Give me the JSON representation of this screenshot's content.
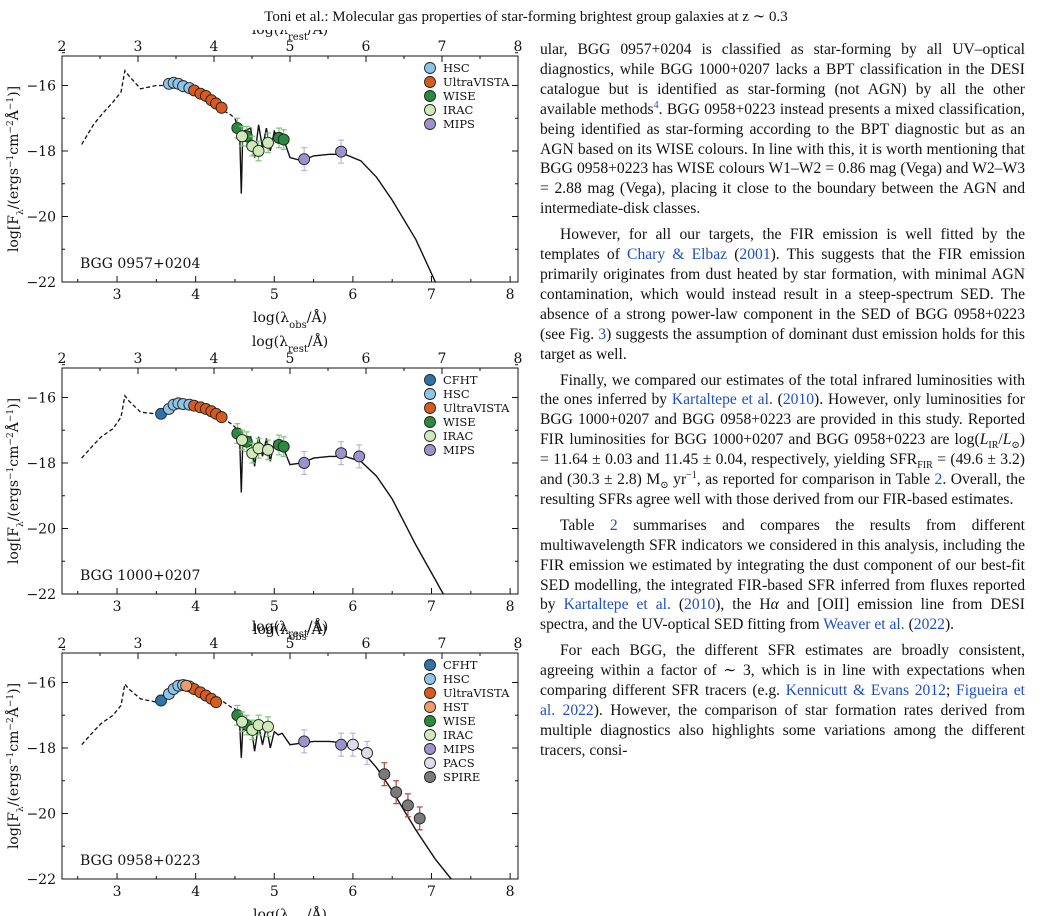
{
  "header": {
    "running_title": "Toni et al.: Molecular gas properties of star-forming brightest group galaxies at z ∼ 0.3"
  },
  "chart_data": [
    {
      "type": "scatter",
      "panel_label": "BGG 0957+0204",
      "xlabel": "log(λobs/Å)",
      "x2label": "log(λrest/Å)",
      "ylabel": "log[Fλ/(ergs−1cm−2Å−1)]",
      "xlim": [
        2.3,
        8.1
      ],
      "x2lim": [
        2.0,
        8.0
      ],
      "ylim": [
        -22,
        -15.1
      ],
      "xticks": [
        3,
        4,
        5,
        6,
        7,
        8
      ],
      "x2ticks": [
        2,
        3,
        4,
        5,
        6,
        7,
        8
      ],
      "yticks": [
        -22,
        -20,
        -18,
        -16
      ],
      "legend_position": "top-right",
      "series": [
        {
          "name": "HSC",
          "color": "#8ec4e8",
          "x": [
            3.66,
            3.72,
            3.78,
            3.84,
            3.92
          ],
          "y": [
            -15.95,
            -15.92,
            -15.95,
            -16.02,
            -16.08
          ],
          "yerr": [
            0,
            0,
            0,
            0,
            0
          ]
        },
        {
          "name": "UltraVISTA",
          "color": "#d85a1e",
          "x": [
            3.98,
            4.06,
            4.13,
            4.2,
            4.26,
            4.33
          ],
          "y": [
            -16.15,
            -16.25,
            -16.32,
            -16.45,
            -16.55,
            -16.68
          ],
          "yerr": [
            0,
            0,
            0,
            0,
            0,
            0
          ]
        },
        {
          "name": "WISE",
          "color": "#2a8a3e",
          "x": [
            4.53,
            4.65,
            5.06,
            5.12
          ],
          "y": [
            -17.3,
            -17.55,
            -17.6,
            -17.65
          ],
          "yerr": [
            0.3,
            0.3,
            0.3,
            0.3
          ]
        },
        {
          "name": "IRAC",
          "color": "#cfeab8",
          "x": [
            4.59,
            4.72,
            4.8,
            4.92
          ],
          "y": [
            -17.55,
            -17.85,
            -18.0,
            -17.75
          ],
          "yerr": [
            0.3,
            0.3,
            0.3,
            0.3
          ]
        },
        {
          "name": "MIPS",
          "color": "#9a93cc",
          "x": [
            5.38,
            5.85
          ],
          "y": [
            -18.25,
            -18.02
          ],
          "yerr": [
            0.35,
            0.35
          ]
        }
      ],
      "model_solid": {
        "x": [
          4.5,
          4.56,
          4.58,
          4.6,
          4.7,
          4.75,
          4.8,
          4.85,
          4.9,
          4.95,
          5.0,
          5.05,
          5.1,
          5.2,
          5.35,
          5.5,
          5.7,
          5.9,
          6.1,
          6.3,
          6.5,
          6.8,
          7.05
        ],
        "y": [
          -17.0,
          -17.5,
          -19.3,
          -17.4,
          -17.3,
          -18.2,
          -17.2,
          -17.9,
          -17.3,
          -18.0,
          -17.4,
          -17.6,
          -17.5,
          -18.2,
          -18.3,
          -18.15,
          -18.1,
          -18.1,
          -18.3,
          -18.8,
          -19.5,
          -20.7,
          -22.0
        ]
      },
      "model_dashed": {
        "x": [
          2.55,
          2.7,
          2.8,
          2.95,
          3.05,
          3.1,
          3.15,
          3.3,
          3.5,
          3.7,
          3.9,
          4.1,
          4.3,
          4.45,
          4.5
        ],
        "y": [
          -17.8,
          -17.2,
          -16.9,
          -16.5,
          -16.2,
          -15.55,
          -15.7,
          -16.1,
          -16.0,
          -16.0,
          -16.15,
          -16.35,
          -16.7,
          -16.9,
          -17.0
        ]
      }
    },
    {
      "type": "scatter",
      "panel_label": "BGG 1000+0207",
      "xlabel": "log(λobs/Å)",
      "x2label": "log(λrest/Å)",
      "ylabel": "log[Fλ/(ergs−1cm−2Å−1)]",
      "xlim": [
        2.3,
        8.1
      ],
      "x2lim": [
        2.0,
        8.0
      ],
      "ylim": [
        -22,
        -15.1
      ],
      "xticks": [
        3,
        4,
        5,
        6,
        7,
        8
      ],
      "x2ticks": [
        2,
        3,
        4,
        5,
        6,
        7,
        8
      ],
      "yticks": [
        -22,
        -20,
        -18,
        -16
      ],
      "legend_position": "top-right",
      "series": [
        {
          "name": "CFHT",
          "color": "#2f73a8",
          "x": [
            3.56
          ],
          "y": [
            -16.5
          ],
          "yerr": [
            0
          ]
        },
        {
          "name": "HSC",
          "color": "#8ec4e8",
          "x": [
            3.66,
            3.72,
            3.78,
            3.84,
            3.92
          ],
          "y": [
            -16.35,
            -16.22,
            -16.18,
            -16.2,
            -16.22
          ],
          "yerr": [
            0,
            0,
            0,
            0,
            0
          ]
        },
        {
          "name": "UltraVISTA",
          "color": "#d85a1e",
          "x": [
            3.98,
            4.06,
            4.13,
            4.2,
            4.26,
            4.33
          ],
          "y": [
            -16.25,
            -16.3,
            -16.35,
            -16.42,
            -16.5,
            -16.6
          ],
          "yerr": [
            0,
            0,
            0,
            0,
            0,
            0
          ]
        },
        {
          "name": "WISE",
          "color": "#2a8a3e",
          "x": [
            4.53,
            4.65,
            5.06,
            5.12
          ],
          "y": [
            -17.1,
            -17.35,
            -17.45,
            -17.5
          ],
          "yerr": [
            0.3,
            0.3,
            0.3,
            0.3
          ]
        },
        {
          "name": "IRAC",
          "color": "#cfeab8",
          "x": [
            4.59,
            4.72,
            4.8,
            4.92
          ],
          "y": [
            -17.3,
            -17.7,
            -17.55,
            -17.6
          ],
          "yerr": [
            0.3,
            0.3,
            0.3,
            0.3
          ]
        },
        {
          "name": "MIPS",
          "color": "#9a93cc",
          "x": [
            5.38,
            5.85,
            6.08
          ],
          "y": [
            -18.0,
            -17.7,
            -17.8
          ],
          "yerr": [
            0.35,
            0.35,
            0.35
          ]
        }
      ],
      "model_solid": {
        "x": [
          4.5,
          4.56,
          4.58,
          4.6,
          4.7,
          4.75,
          4.8,
          4.85,
          4.9,
          4.95,
          5.0,
          5.05,
          5.1,
          5.2,
          5.35,
          5.5,
          5.7,
          5.9,
          6.1,
          6.3,
          6.5,
          6.8,
          7.15
        ],
        "y": [
          -16.9,
          -17.3,
          -18.9,
          -17.3,
          -17.2,
          -18.1,
          -17.2,
          -17.8,
          -17.25,
          -17.95,
          -17.35,
          -17.5,
          -17.45,
          -18.05,
          -18.0,
          -17.85,
          -17.8,
          -17.8,
          -17.95,
          -18.4,
          -19.1,
          -20.5,
          -22.0
        ]
      },
      "model_dashed": {
        "x": [
          2.55,
          2.7,
          2.8,
          2.95,
          3.05,
          3.1,
          3.15,
          3.3,
          3.5,
          3.7,
          3.9,
          4.1,
          4.3,
          4.45,
          4.5
        ],
        "y": [
          -17.85,
          -17.45,
          -17.2,
          -16.95,
          -16.6,
          -15.95,
          -16.1,
          -16.45,
          -16.5,
          -16.3,
          -16.22,
          -16.3,
          -16.55,
          -16.8,
          -16.9
        ]
      }
    },
    {
      "type": "scatter",
      "panel_label": "BGG 0958+0223",
      "xlabel": "log(λobs/Å)",
      "x2label": "log(λrest/Å)",
      "ylabel": "log[Fλ/(ergs−1cm−2Å−1)]",
      "xlim": [
        2.3,
        8.1
      ],
      "x2lim": [
        2.0,
        8.0
      ],
      "ylim": [
        -22,
        -15.1
      ],
      "xticks": [
        3,
        4,
        5,
        6,
        7,
        8
      ],
      "x2ticks": [
        2,
        3,
        4,
        5,
        6,
        7,
        8
      ],
      "yticks": [
        -22,
        -20,
        -18,
        -16
      ],
      "legend_position": "top-right",
      "series": [
        {
          "name": "CFHT",
          "color": "#2f73a8",
          "x": [
            3.56
          ],
          "y": [
            -16.55
          ],
          "yerr": [
            0
          ]
        },
        {
          "name": "HSC",
          "color": "#8ec4e8",
          "x": [
            3.66,
            3.72,
            3.78,
            3.84,
            3.92
          ],
          "y": [
            -16.35,
            -16.2,
            -16.1,
            -16.08,
            -16.12
          ],
          "yerr": [
            0,
            0,
            0,
            0,
            0
          ]
        },
        {
          "name": "UltraVISTA",
          "color": "#d85a1e",
          "x": [
            3.98,
            4.06,
            4.13,
            4.2,
            4.26
          ],
          "y": [
            -16.2,
            -16.3,
            -16.4,
            -16.5,
            -16.6
          ],
          "yerr": [
            0,
            0,
            0,
            0,
            0
          ]
        },
        {
          "name": "HST",
          "color": "#f29a6a",
          "x": [
            3.88
          ],
          "y": [
            -16.1
          ],
          "yerr": [
            0
          ]
        },
        {
          "name": "WISE",
          "color": "#2a8a3e",
          "x": [
            4.53,
            4.65
          ],
          "y": [
            -17.0,
            -17.3
          ],
          "yerr": [
            0.3,
            0.3
          ]
        },
        {
          "name": "IRAC",
          "color": "#cfeab8",
          "x": [
            4.59,
            4.72,
            4.8,
            4.92
          ],
          "y": [
            -17.2,
            -17.45,
            -17.3,
            -17.35
          ],
          "yerr": [
            0.3,
            0.3,
            0.3,
            0.3
          ]
        },
        {
          "name": "MIPS",
          "color": "#9a93cc",
          "x": [
            5.38,
            5.85
          ],
          "y": [
            -17.8,
            -17.9
          ],
          "yerr": [
            0.35,
            0.35
          ]
        },
        {
          "name": "PACS",
          "color": "#dcdcea",
          "x": [
            6.0,
            6.18
          ],
          "y": [
            -17.9,
            -18.15
          ],
          "yerr": [
            0.35,
            0.35
          ]
        },
        {
          "name": "SPIRE",
          "color": "#7a7a7a",
          "x": [
            6.4,
            6.55,
            6.7,
            6.85
          ],
          "y": [
            -18.8,
            -19.35,
            -19.75,
            -20.15
          ],
          "yerr": [
            0.35,
            0.35,
            0.35,
            0.35
          ]
        }
      ],
      "model_solid": {
        "x": [
          4.5,
          4.56,
          4.58,
          4.6,
          4.7,
          4.75,
          4.8,
          4.85,
          4.9,
          4.95,
          5.0,
          5.05,
          5.1,
          5.2,
          5.35,
          5.5,
          5.7,
          5.9,
          6.1,
          6.3,
          6.5,
          6.8,
          7.05,
          7.25
        ],
        "y": [
          -16.8,
          -17.3,
          -18.3,
          -17.4,
          -17.25,
          -18.1,
          -17.3,
          -17.9,
          -17.35,
          -18.0,
          -17.5,
          -17.6,
          -17.55,
          -17.9,
          -17.85,
          -17.8,
          -17.8,
          -17.85,
          -18.05,
          -18.6,
          -19.3,
          -20.5,
          -21.4,
          -22.0
        ]
      },
      "model_dashed": {
        "x": [
          2.55,
          2.7,
          2.8,
          2.95,
          3.05,
          3.1,
          3.15,
          3.3,
          3.5,
          3.7,
          3.9,
          4.1,
          4.3,
          4.45,
          4.5
        ],
        "y": [
          -17.9,
          -17.5,
          -17.25,
          -17.0,
          -16.7,
          -16.05,
          -16.2,
          -16.5,
          -16.6,
          -16.3,
          -16.15,
          -16.3,
          -16.5,
          -16.75,
          -16.8
        ]
      }
    }
  ],
  "body_paragraphs": [
    {
      "indent": false,
      "segments": [
        {
          "t": "ular, BGG 0957+0204 is classified as star-forming by all UV–optical diagnostics, while BGG 1000+0207 lacks a BPT classification in the DESI catalogue but is identified as star-forming (not AGN) by all the other available methods"
        },
        {
          "t": "4",
          "sup": true,
          "link": true
        },
        {
          "t": ". BGG 0958+0223 instead presents a mixed classification, being identified as star-forming according to the BPT diagnostic but as an AGN based on its WISE colours. In line with this, it is worth mentioning that BGG 0958+0223 has WISE colours W1–W2 = 0.86 mag (Vega) and W2–W3 = 2.88 mag (Vega), placing it close to the boundary between the AGN and intermediate-disk classes."
        }
      ]
    },
    {
      "indent": true,
      "segments": [
        {
          "t": "However, for all our targets, the FIR emission is well fitted by the templates of "
        },
        {
          "t": "Chary & Elbaz",
          "link": true
        },
        {
          "t": " ("
        },
        {
          "t": "2001",
          "link": true
        },
        {
          "t": "). This suggests that the FIR emission primarily originates from dust heated by star formation, with minimal AGN contamination, which would instead result in a steep-spectrum SED. The absence of a strong power-law component in the SED of BGG 0958+0223 (see Fig. "
        },
        {
          "t": "3",
          "link": true
        },
        {
          "t": ") suggests the assumption of dominant dust emission holds for this target as well."
        }
      ]
    },
    {
      "indent": true,
      "segments": [
        {
          "t": "Finally, we compared our estimates of the total infrared luminosities with the ones inferred by "
        },
        {
          "t": "Kartaltepe et al.",
          "link": true
        },
        {
          "t": " ("
        },
        {
          "t": "2010",
          "link": true
        },
        {
          "t": "). However, only luminosities for BGG 1000+0207 and BGG 0958+0223 are provided in this study. Reported FIR luminosities for BGG 1000+0207 and BGG 0958+0223 are log("
        },
        {
          "t": "L",
          "italic": true
        },
        {
          "t": "IR",
          "sub": true
        },
        {
          "t": "/"
        },
        {
          "t": "L",
          "italic": true
        },
        {
          "t": "⊙",
          "sub": true
        },
        {
          "t": ") = 11.64 ± 0.03 and 11.45 ± 0.04, respectively, yielding SFR"
        },
        {
          "t": "FIR",
          "sub": true
        },
        {
          "t": " = (49.6 ± 3.2) and (30.3 ± 2.8) M"
        },
        {
          "t": "⊙",
          "sub": true
        },
        {
          "t": " yr"
        },
        {
          "t": "−1",
          "sup": true
        },
        {
          "t": ", as reported for comparison in Table "
        },
        {
          "t": "2",
          "link": true
        },
        {
          "t": ". Overall, the resulting SFRs agree well with those derived from our FIR-based estimates."
        }
      ]
    },
    {
      "indent": true,
      "segments": [
        {
          "t": "Table "
        },
        {
          "t": "2",
          "link": true
        },
        {
          "t": " summarises and compares the results from different multiwavelength SFR indicators we considered in this analysis, including the FIR emission we estimated by integrating the dust component of our best-fit SED modelling, the integrated FIR-based SFR inferred from fluxes reported by "
        },
        {
          "t": "Kartaltepe et al.",
          "link": true
        },
        {
          "t": " ("
        },
        {
          "t": "2010",
          "link": true
        },
        {
          "t": "), the H"
        },
        {
          "t": "α",
          "italic": true
        },
        {
          "t": " and [OII] emission line from DESI spectra, and the UV-optical SED fitting from "
        },
        {
          "t": "Weaver et al.",
          "link": true
        },
        {
          "t": " ("
        },
        {
          "t": "2022",
          "link": true
        },
        {
          "t": ")."
        }
      ]
    },
    {
      "indent": true,
      "segments": [
        {
          "t": "For each BGG, the different SFR estimates are broadly consistent, agreeing within a factor of ∼ 3, which is in line with expectations when comparing different SFR tracers (e.g. "
        },
        {
          "t": "Kennicutt & Evans 2012",
          "link": true
        },
        {
          "t": "; "
        },
        {
          "t": "Figueira et al. 2022",
          "link": true
        },
        {
          "t": "). However, the comparison of star formation rates derived from multiple diagnostics also highlights some variations among the different tracers, consi-"
        }
      ]
    }
  ]
}
